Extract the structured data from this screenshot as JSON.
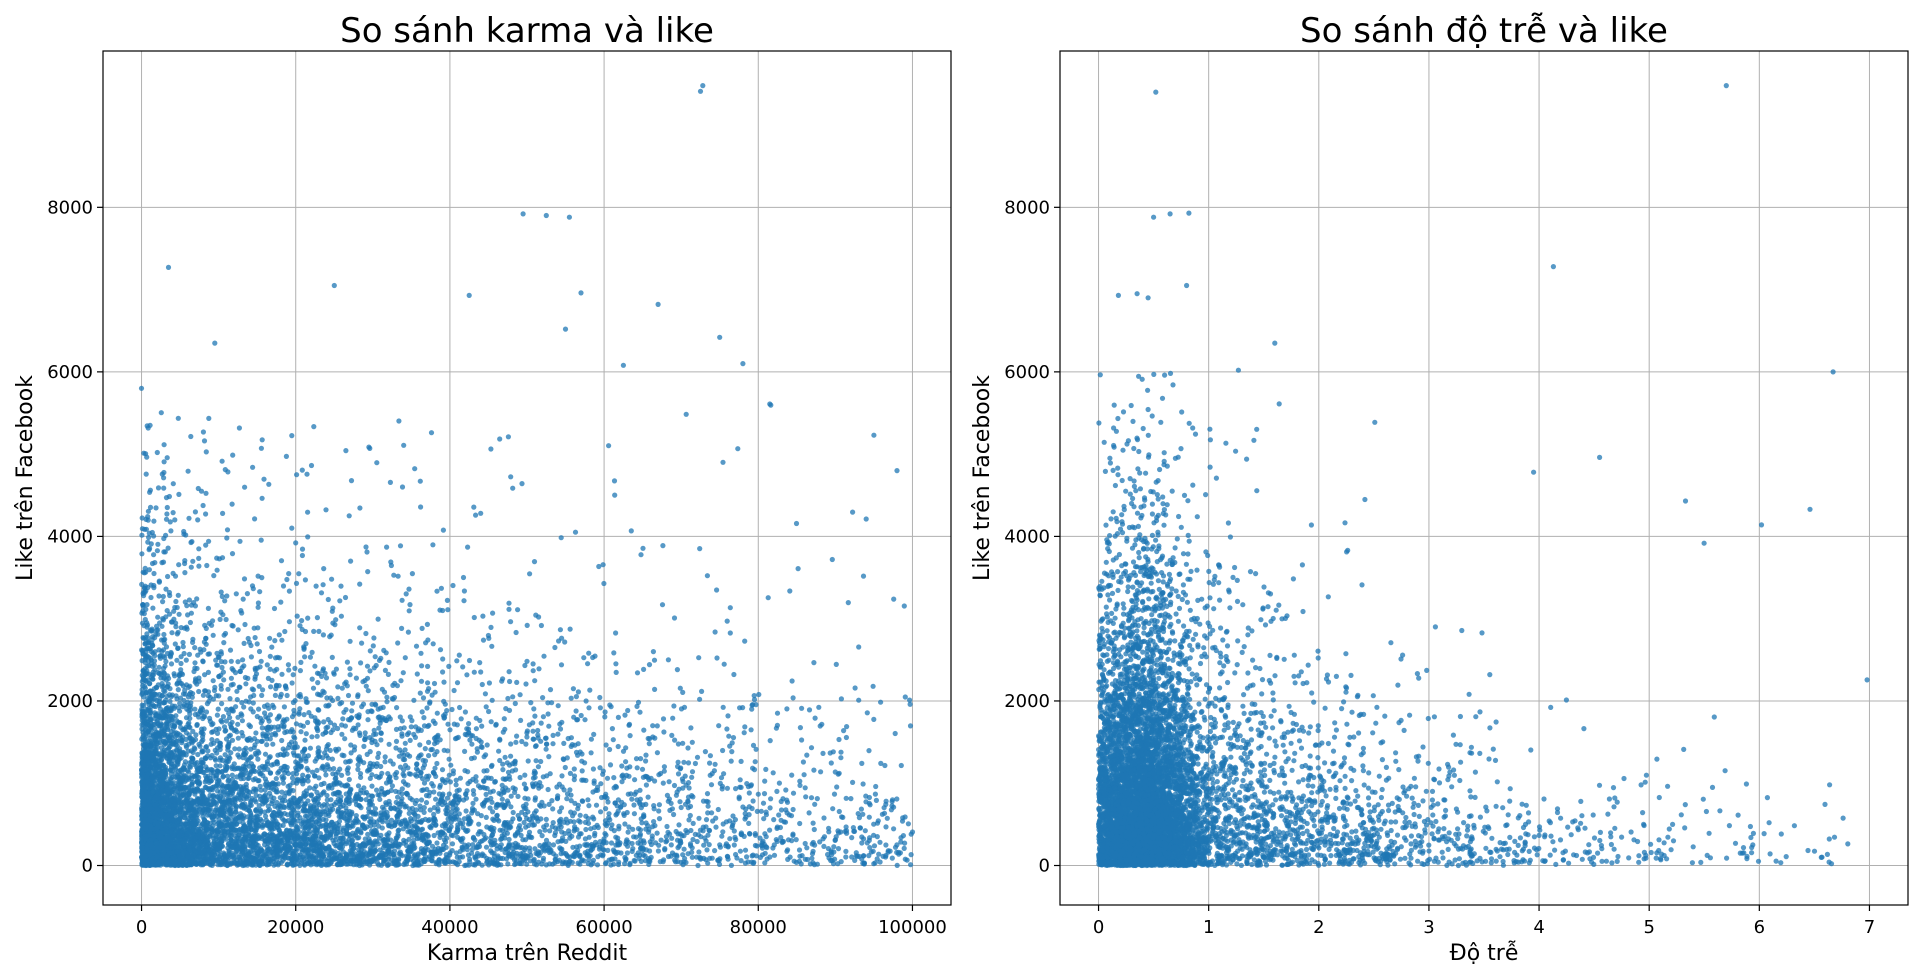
{
  "chart_data": [
    {
      "type": "scatter",
      "title": "So sánh karma và like",
      "xlabel": "Karma trên Reddit",
      "ylabel": "Like trên Facebook",
      "xlim": [
        -5000,
        105000
      ],
      "ylim": [
        -480,
        9900
      ],
      "xticks": [
        0,
        20000,
        40000,
        60000,
        80000,
        100000
      ],
      "xtick_labels": [
        "0",
        "20000",
        "40000",
        "60000",
        "80000",
        "100000"
      ],
      "yticks": [
        0,
        2000,
        4000,
        6000,
        8000
      ],
      "ytick_labels": [
        "0",
        "2000",
        "4000",
        "6000",
        "8000"
      ],
      "grid": true,
      "color": "#1f77b4",
      "notable_points": [
        {
          "x": 3500,
          "y": 7270
        },
        {
          "x": 25000,
          "y": 7050
        },
        {
          "x": 42500,
          "y": 6930
        },
        {
          "x": 49500,
          "y": 7920
        },
        {
          "x": 52500,
          "y": 7900
        },
        {
          "x": 55500,
          "y": 7880
        },
        {
          "x": 57000,
          "y": 6960
        },
        {
          "x": 67000,
          "y": 6820
        },
        {
          "x": 72500,
          "y": 9410
        },
        {
          "x": 72800,
          "y": 9480
        },
        {
          "x": 75000,
          "y": 6420
        },
        {
          "x": 78000,
          "y": 6100
        },
        {
          "x": 9500,
          "y": 6350
        },
        {
          "x": 0,
          "y": 5800
        },
        {
          "x": 55000,
          "y": 6520
        },
        {
          "x": 62500,
          "y": 6080
        },
        {
          "x": 81500,
          "y": 5610
        },
        {
          "x": 95000,
          "y": 5230
        },
        {
          "x": 98000,
          "y": 4800
        }
      ]
    },
    {
      "type": "scatter",
      "title": "So sánh độ trễ và like",
      "xlabel": "Độ trễ",
      "ylabel": "Like trên Facebook",
      "xlim": [
        -0.35,
        7.35
      ],
      "ylim": [
        -480,
        9900
      ],
      "xticks": [
        0,
        1,
        2,
        3,
        4,
        5,
        6,
        7
      ],
      "xtick_labels": [
        "0",
        "1",
        "2",
        "3",
        "4",
        "5",
        "6",
        "7"
      ],
      "yticks": [
        0,
        2000,
        4000,
        6000,
        8000
      ],
      "ytick_labels": [
        "0",
        "2000",
        "4000",
        "6000",
        "8000"
      ],
      "grid": true,
      "color": "#1f77b4",
      "notable_points": [
        {
          "x": 0.52,
          "y": 9400
        },
        {
          "x": 5.7,
          "y": 9480
        },
        {
          "x": 0.5,
          "y": 7880
        },
        {
          "x": 0.65,
          "y": 7920
        },
        {
          "x": 0.82,
          "y": 7930
        },
        {
          "x": 0.8,
          "y": 7050
        },
        {
          "x": 4.13,
          "y": 7280
        },
        {
          "x": 0.35,
          "y": 6950
        },
        {
          "x": 0.45,
          "y": 6900
        },
        {
          "x": 0.18,
          "y": 6930
        },
        {
          "x": 1.6,
          "y": 6350
        },
        {
          "x": 6.67,
          "y": 6000
        },
        {
          "x": 1.27,
          "y": 6020
        },
        {
          "x": 6.46,
          "y": 4330
        },
        {
          "x": 5.33,
          "y": 4430
        },
        {
          "x": 4.55,
          "y": 4960
        },
        {
          "x": 3.95,
          "y": 4780
        },
        {
          "x": 6.02,
          "y": 4140
        }
      ]
    }
  ]
}
